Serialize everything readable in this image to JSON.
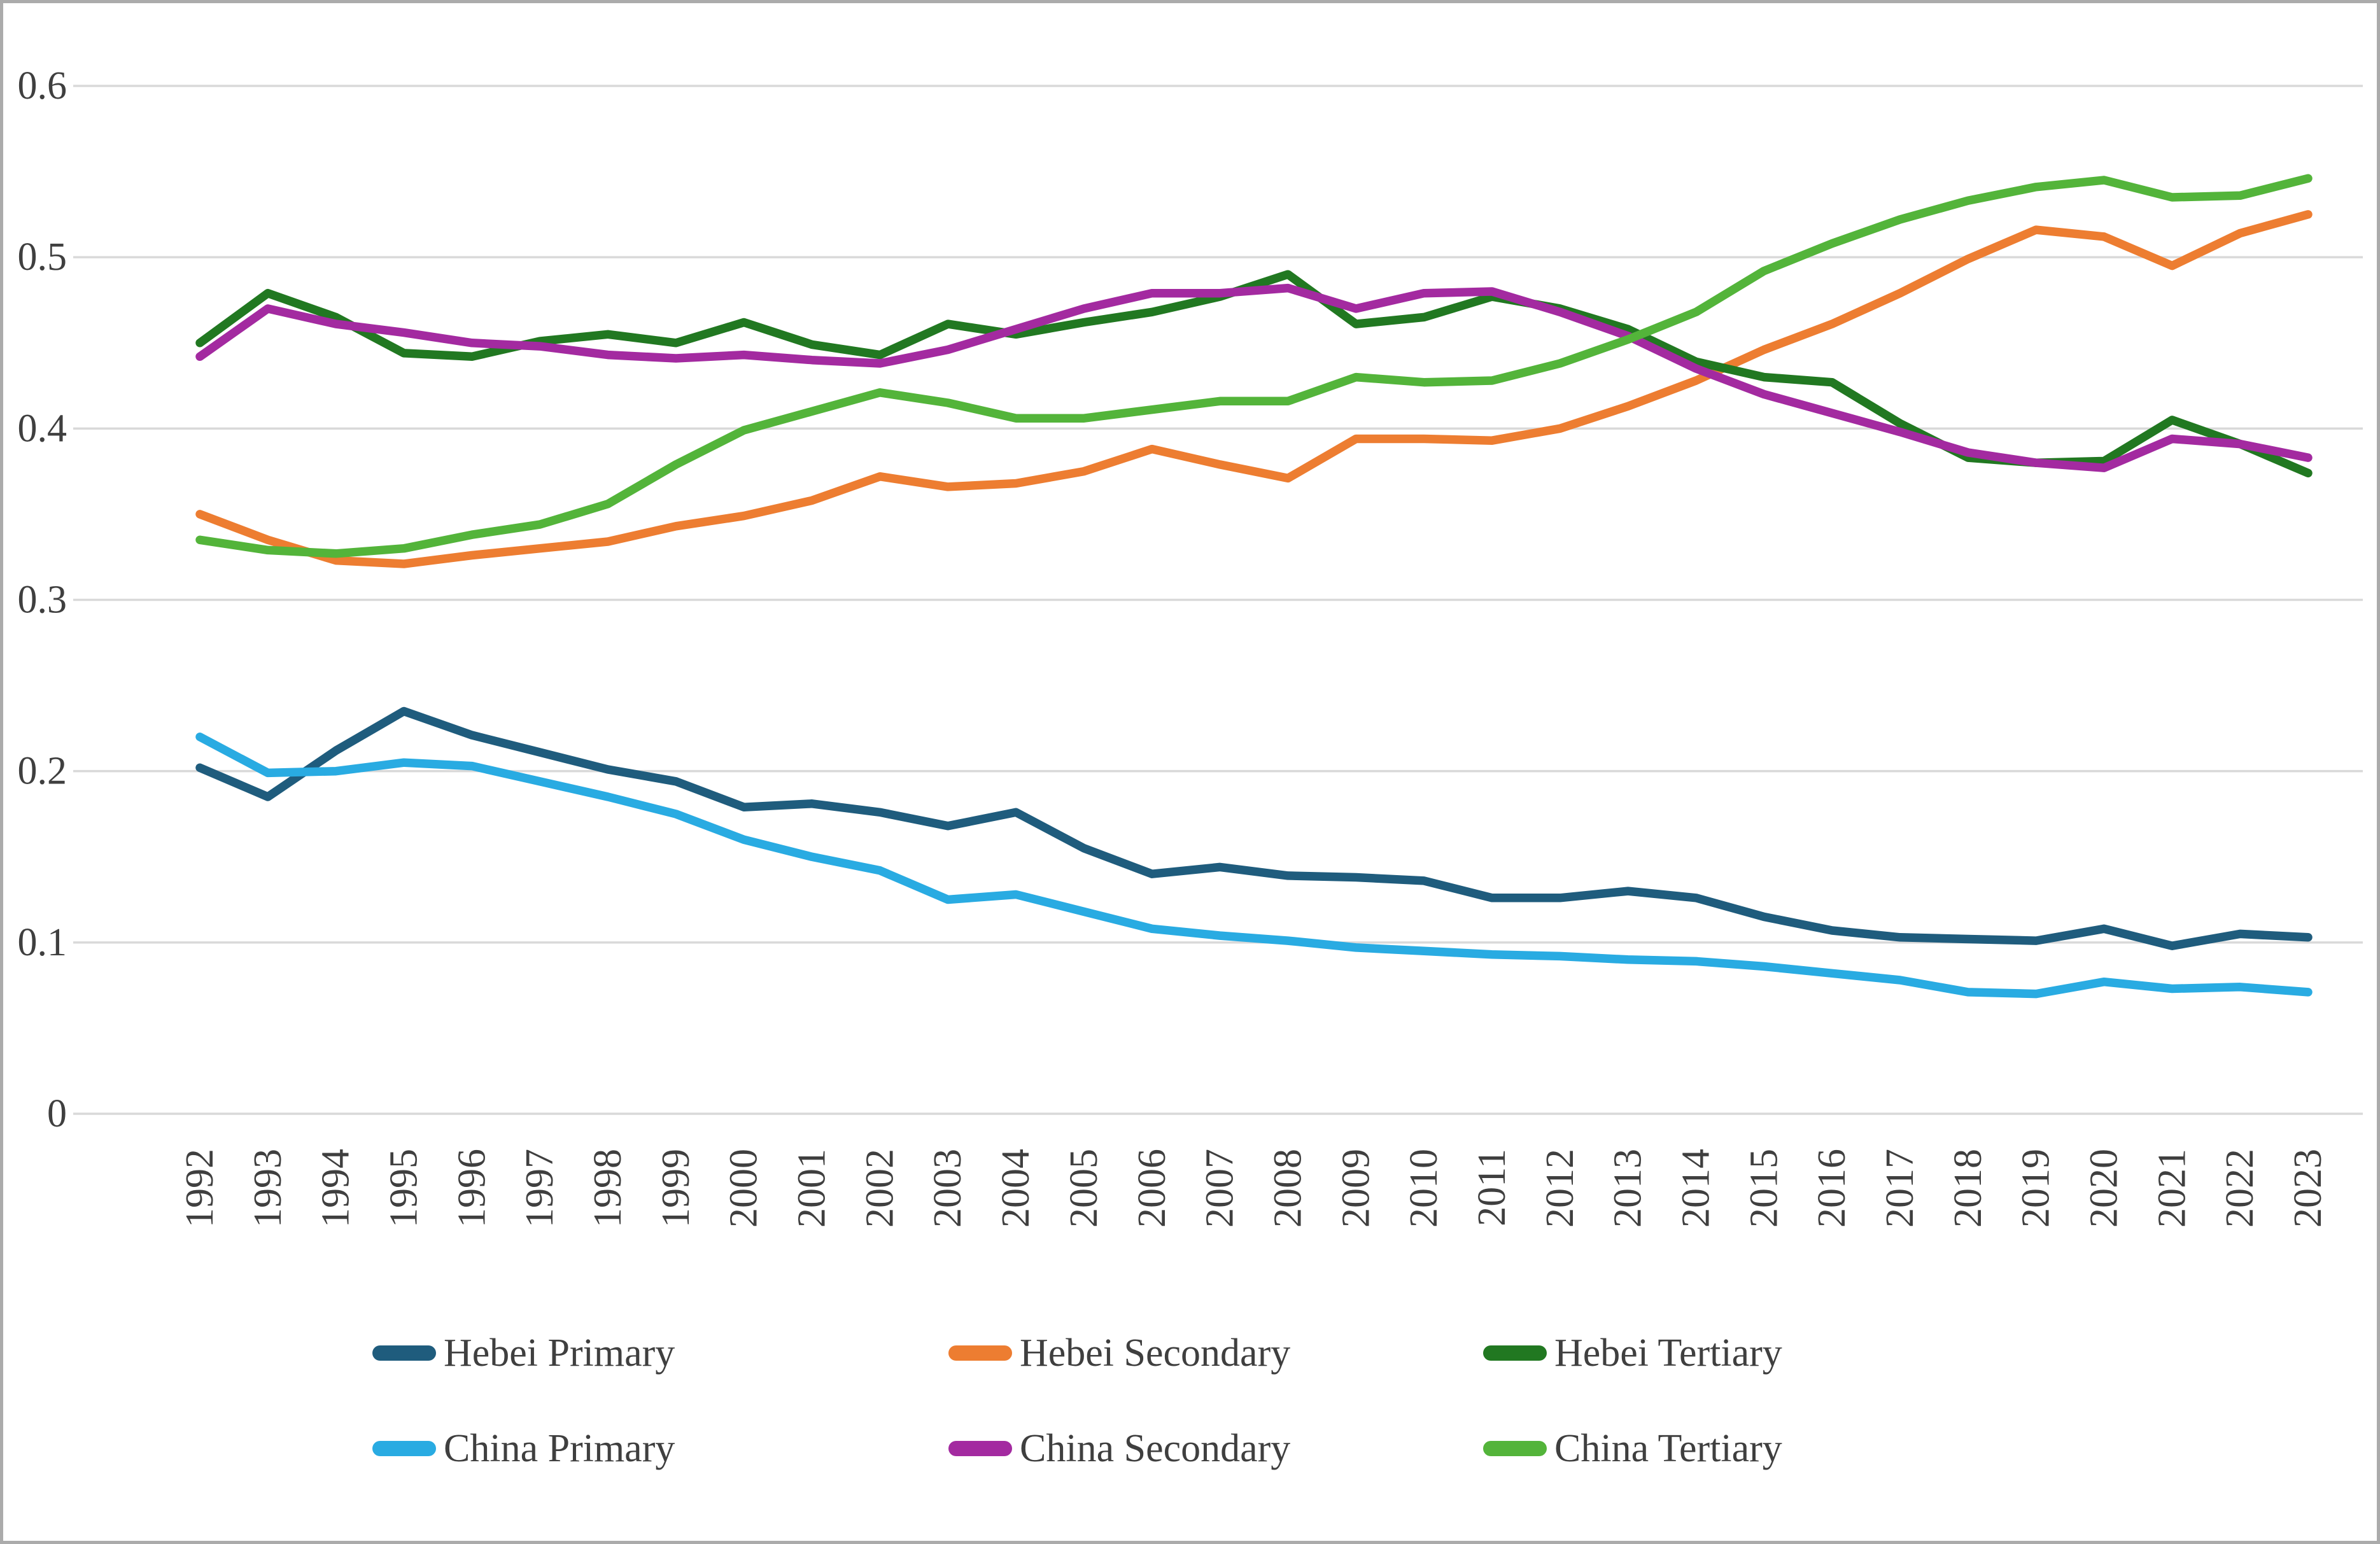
{
  "styling": {
    "background": "#ffffff",
    "frame_color": "#ababab",
    "grid_color": "#d9d9d9",
    "label_color": "#3f3f3f"
  },
  "chart_data": {
    "type": "line",
    "title": "",
    "xlabel": "",
    "ylabel": "",
    "grid": true,
    "legend_position": "bottom",
    "x_categories": [
      "1992",
      "1993",
      "1994",
      "1995",
      "1996",
      "1997",
      "1998",
      "1999",
      "2000",
      "2001",
      "2002",
      "2003",
      "2004",
      "2005",
      "2006",
      "2007",
      "2008",
      "2009",
      "2010",
      "2011",
      "2012",
      "2013",
      "2014",
      "2015",
      "2016",
      "2017",
      "2018",
      "2019",
      "2020",
      "2021",
      "2022",
      "2023"
    ],
    "y_axis": {
      "min": 0,
      "max": 0.6,
      "tick_step": 0.1,
      "ticks": [
        "0",
        "0.1",
        "0.2",
        "0.3",
        "0.4",
        "0.5",
        "0.6"
      ]
    },
    "series": [
      {
        "name": "Hebei Primary",
        "color": "#1f5c7d",
        "values": [
          0.202,
          0.185,
          0.212,
          0.235,
          0.221,
          0.211,
          0.201,
          0.194,
          0.179,
          0.181,
          0.176,
          0.168,
          0.176,
          0.155,
          0.14,
          0.144,
          0.139,
          0.138,
          0.136,
          0.126,
          0.126,
          0.13,
          0.126,
          0.115,
          0.107,
          0.103,
          0.102,
          0.101,
          0.108,
          0.098,
          0.105,
          0.103
        ]
      },
      {
        "name": "Hebei Secondary",
        "color": "#ed7d31",
        "values": [
          0.35,
          0.335,
          0.323,
          0.321,
          0.326,
          0.33,
          0.334,
          0.343,
          0.349,
          0.358,
          0.372,
          0.366,
          0.368,
          0.375,
          0.388,
          0.379,
          0.371,
          0.394,
          0.394,
          0.393,
          0.4,
          0.413,
          0.428,
          0.446,
          0.461,
          0.479,
          0.499,
          0.516,
          0.512,
          0.495,
          0.514,
          0.525
        ]
      },
      {
        "name": "Hebei Tertiary",
        "color": "#217821",
        "values": [
          0.45,
          0.479,
          0.465,
          0.444,
          0.442,
          0.451,
          0.455,
          0.45,
          0.462,
          0.449,
          0.443,
          0.461,
          0.455,
          0.462,
          0.468,
          0.477,
          0.49,
          0.461,
          0.465,
          0.477,
          0.47,
          0.458,
          0.439,
          0.43,
          0.427,
          0.403,
          0.383,
          0.38,
          0.381,
          0.405,
          0.391,
          0.374
        ]
      },
      {
        "name": "China Primary",
        "color": "#29abe2",
        "values": [
          0.22,
          0.199,
          0.2,
          0.205,
          0.203,
          0.194,
          0.185,
          0.175,
          0.16,
          0.15,
          0.142,
          0.125,
          0.128,
          0.118,
          0.108,
          0.104,
          0.101,
          0.097,
          0.095,
          0.093,
          0.092,
          0.09,
          0.089,
          0.086,
          0.082,
          0.078,
          0.071,
          0.07,
          0.077,
          0.073,
          0.074,
          0.071
        ]
      },
      {
        "name": "China Secondary",
        "color": "#a32aa0",
        "values": [
          0.442,
          0.47,
          0.461,
          0.456,
          0.45,
          0.448,
          0.443,
          0.441,
          0.443,
          0.44,
          0.438,
          0.446,
          0.458,
          0.47,
          0.479,
          0.479,
          0.482,
          0.47,
          0.479,
          0.48,
          0.468,
          0.454,
          0.435,
          0.42,
          0.409,
          0.398,
          0.386,
          0.38,
          0.377,
          0.394,
          0.391,
          0.383
        ]
      },
      {
        "name": "China Tertiary",
        "color": "#53b43a",
        "values": [
          0.335,
          0.329,
          0.327,
          0.33,
          0.338,
          0.344,
          0.356,
          0.379,
          0.399,
          0.41,
          0.421,
          0.415,
          0.406,
          0.406,
          0.411,
          0.416,
          0.416,
          0.43,
          0.427,
          0.428,
          0.438,
          0.452,
          0.468,
          0.492,
          0.508,
          0.522,
          0.533,
          0.541,
          0.545,
          0.535,
          0.536,
          0.546
        ]
      }
    ]
  }
}
